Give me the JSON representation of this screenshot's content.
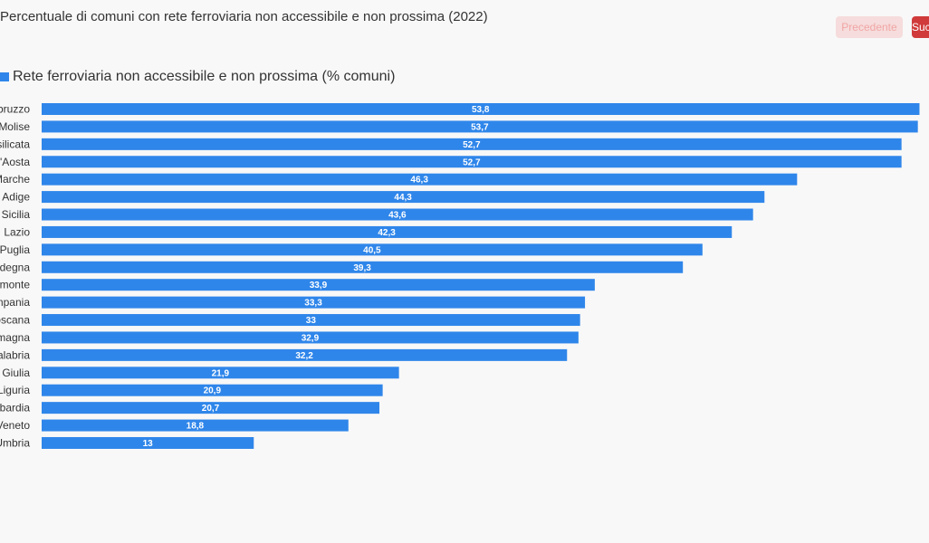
{
  "header": {
    "title": "Percentuale di comuni con rete ferroviaria non accessibile e non prossima (2022)",
    "prev_label": "Precedente",
    "next_label": "Successivo"
  },
  "colors": {
    "bar": "#2f86ea",
    "accent": "#d03a3a"
  },
  "chart_data": {
    "type": "bar",
    "orientation": "horizontal",
    "title": "Percentuale di comuni con rete ferroviaria non accessibile e non prossima (2022)",
    "categories": [
      "Abruzzo",
      "Molise",
      "Basilicata",
      "Valle d'Aosta",
      "Marche",
      "Trentino-Alto Adige",
      "Sicilia",
      "Lazio",
      "Puglia",
      "Sardegna",
      "Piemonte",
      "Campania",
      "Toscana",
      "Emilia-Romagna",
      "Calabria",
      "Friuli-Venezia Giulia",
      "Liguria",
      "Lombardia",
      "Veneto",
      "Umbria"
    ],
    "series": [
      {
        "name": "Rete ferroviaria non accessibile e non prossima (% comuni)",
        "values": [
          53.8,
          53.7,
          52.7,
          52.7,
          46.3,
          44.3,
          43.6,
          42.3,
          40.5,
          39.3,
          33.9,
          33.3,
          33,
          32.9,
          32.2,
          21.9,
          20.9,
          20.7,
          18.8,
          13
        ]
      }
    ],
    "value_labels": [
      "53,8",
      "53,7",
      "52,7",
      "52,7",
      "46,3",
      "44,3",
      "43,6",
      "42,3",
      "40,5",
      "39,3",
      "33,9",
      "33,3",
      "33",
      "32,9",
      "32,2",
      "21,9",
      "20,9",
      "20,7",
      "18,8",
      "13"
    ],
    "legend": "top-left",
    "grid": false
  }
}
